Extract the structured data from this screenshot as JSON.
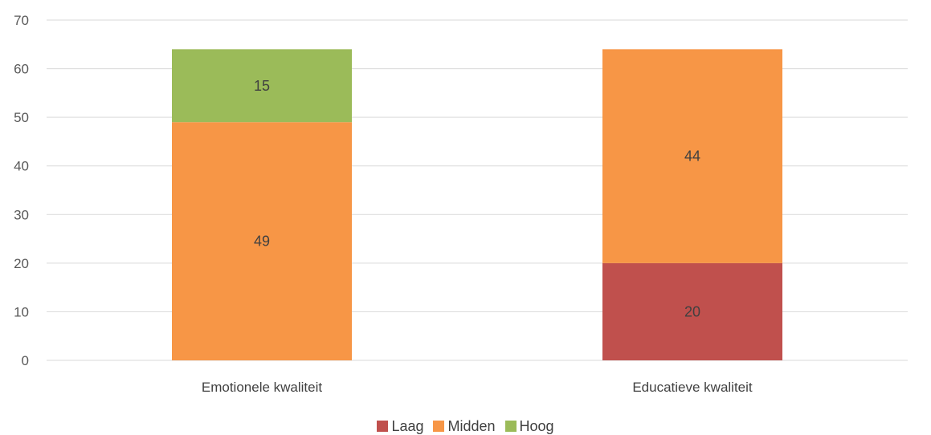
{
  "chart_data": {
    "type": "bar",
    "stacked": true,
    "categories": [
      "Emotionele kwaliteit",
      "Educatieve kwaliteit"
    ],
    "series": [
      {
        "name": "Laag",
        "color": "#c0504d",
        "values": [
          0,
          20
        ]
      },
      {
        "name": "Midden",
        "color": "#f79646",
        "values": [
          49,
          44
        ]
      },
      {
        "name": "Hoog",
        "color": "#9bbb59",
        "values": [
          15,
          0
        ]
      }
    ],
    "ylim": [
      0,
      70
    ],
    "yticks": [
      "0",
      "10",
      "20",
      "30",
      "40",
      "50",
      "60",
      "70"
    ],
    "grid": true,
    "legend_position": "bottom",
    "title": "",
    "xlabel": "",
    "ylabel": ""
  }
}
